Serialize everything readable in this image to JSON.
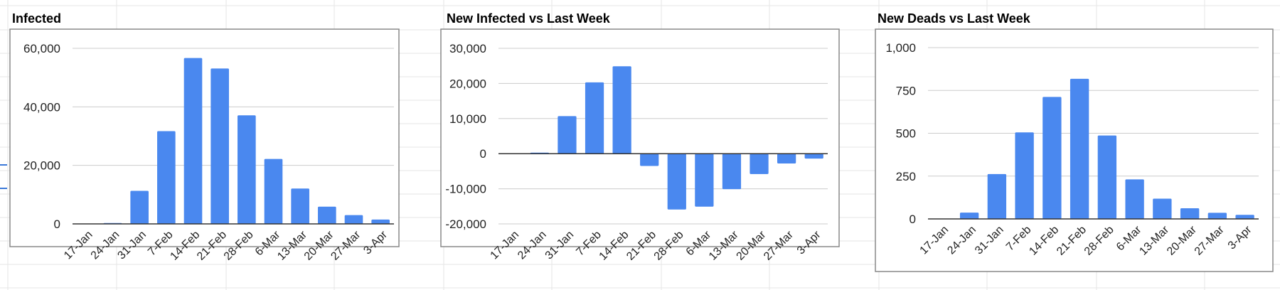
{
  "colors": {
    "bar": "#4a88ef",
    "gridline": "#cccccc",
    "zero_line": "#333333",
    "frame": "#888888",
    "sheet_grid": "#e6e6e6"
  },
  "chart_data": [
    {
      "type": "bar",
      "title": "Infected",
      "categories": [
        "17-Jan",
        "24-Jan",
        "31-Jan",
        "7-Feb",
        "14-Feb",
        "21-Feb",
        "28-Feb",
        "6-Mar",
        "13-Mar",
        "20-Mar",
        "27-Mar",
        "3-Apr"
      ],
      "values": [
        0,
        300,
        11300,
        31700,
        56700,
        53100,
        37100,
        22200,
        12100,
        5900,
        3000,
        1500
      ],
      "ylim": [
        0,
        60000
      ],
      "yticks": [
        "0",
        "20,000",
        "40,000",
        "60,000"
      ],
      "ytick_values": [
        0,
        20000,
        40000,
        60000
      ],
      "grid": true,
      "legend": "none"
    },
    {
      "type": "bar",
      "title": "New Infected vs Last Week",
      "categories": [
        "17-Jan",
        "24-Jan",
        "31-Jan",
        "7-Feb",
        "14-Feb",
        "21-Feb",
        "28-Feb",
        "6-Mar",
        "13-Mar",
        "20-Mar",
        "27-Mar",
        "3-Apr"
      ],
      "values": [
        0,
        300,
        10700,
        20300,
        24900,
        -3500,
        -15900,
        -15100,
        -10100,
        -5800,
        -2800,
        -1400
      ],
      "ylim": [
        -20000,
        30000
      ],
      "yticks": [
        "-20,000",
        "-10,000",
        "0",
        "10,000",
        "20,000",
        "30,000"
      ],
      "ytick_values": [
        -20000,
        -10000,
        0,
        10000,
        20000,
        30000
      ],
      "grid": true,
      "legend": "none"
    },
    {
      "type": "bar",
      "title": "New Deads vs Last Week",
      "categories": [
        "17-Jan",
        "24-Jan",
        "31-Jan",
        "7-Feb",
        "14-Feb",
        "21-Feb",
        "28-Feb",
        "6-Mar",
        "13-Mar",
        "20-Mar",
        "27-Mar",
        "3-Apr"
      ],
      "values": [
        0,
        37,
        262,
        505,
        712,
        818,
        487,
        231,
        118,
        62,
        36,
        24
      ],
      "ylim": [
        0,
        1000
      ],
      "yticks": [
        "0",
        "250",
        "500",
        "750",
        "1,000"
      ],
      "ytick_values": [
        0,
        250,
        500,
        750,
        1000
      ],
      "grid": true,
      "legend": "none"
    }
  ]
}
